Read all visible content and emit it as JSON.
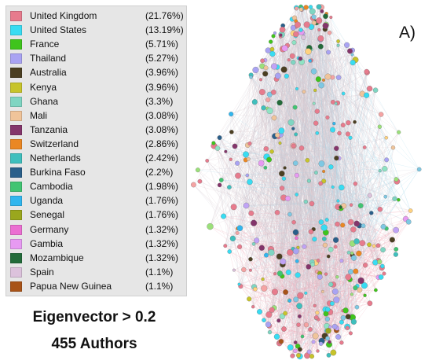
{
  "legend": {
    "items": [
      {
        "country": "United Kingdom",
        "percent": "(21.76%)",
        "color": "#e77b8d"
      },
      {
        "country": "United States",
        "percent": "(13.19%)",
        "color": "#38dcf2"
      },
      {
        "country": "France",
        "percent": "(5.71%)",
        "color": "#3fc41c"
      },
      {
        "country": "Thailand",
        "percent": "(5.27%)",
        "color": "#a9a3f3"
      },
      {
        "country": "Australia",
        "percent": "(3.96%)",
        "color": "#4b3f22"
      },
      {
        "country": "Kenya",
        "percent": "(3.96%)",
        "color": "#c7c42a"
      },
      {
        "country": "Ghana",
        "percent": "(3.3%)",
        "color": "#7fd5c2"
      },
      {
        "country": "Mali",
        "percent": "(3.08%)",
        "color": "#f0c49a"
      },
      {
        "country": "Tanzania",
        "percent": "(3.08%)",
        "color": "#84356b"
      },
      {
        "country": "Switzerland",
        "percent": "(2.86%)",
        "color": "#ea8723"
      },
      {
        "country": "Netherlands",
        "percent": "(2.42%)",
        "color": "#3fbfbd"
      },
      {
        "country": "Burkina Faso",
        "percent": "(2.2%)",
        "color": "#2a5f8a"
      },
      {
        "country": "Cambodia",
        "percent": "(1.98%)",
        "color": "#41c472"
      },
      {
        "country": "Uganda",
        "percent": "(1.76%)",
        "color": "#31b6ee"
      },
      {
        "country": "Senegal",
        "percent": "(1.76%)",
        "color": "#9aa71d"
      },
      {
        "country": "Germany",
        "percent": "(1.32%)",
        "color": "#eb6fd2"
      },
      {
        "country": "Gambia",
        "percent": "(1.32%)",
        "color": "#e79af2"
      },
      {
        "country": "Mozambique",
        "percent": "(1.32%)",
        "color": "#236b3a"
      },
      {
        "country": "Spain",
        "percent": "(1.1%)",
        "color": "#dcc2dc"
      },
      {
        "country": "Papua New Guinea",
        "percent": "(1.1%)",
        "color": "#a85318"
      }
    ]
  },
  "caption": {
    "line1": "Eigenvector > 0.2",
    "line2": "455 Authors"
  },
  "panel_label": "A)",
  "network": {
    "node_count": 455
  }
}
